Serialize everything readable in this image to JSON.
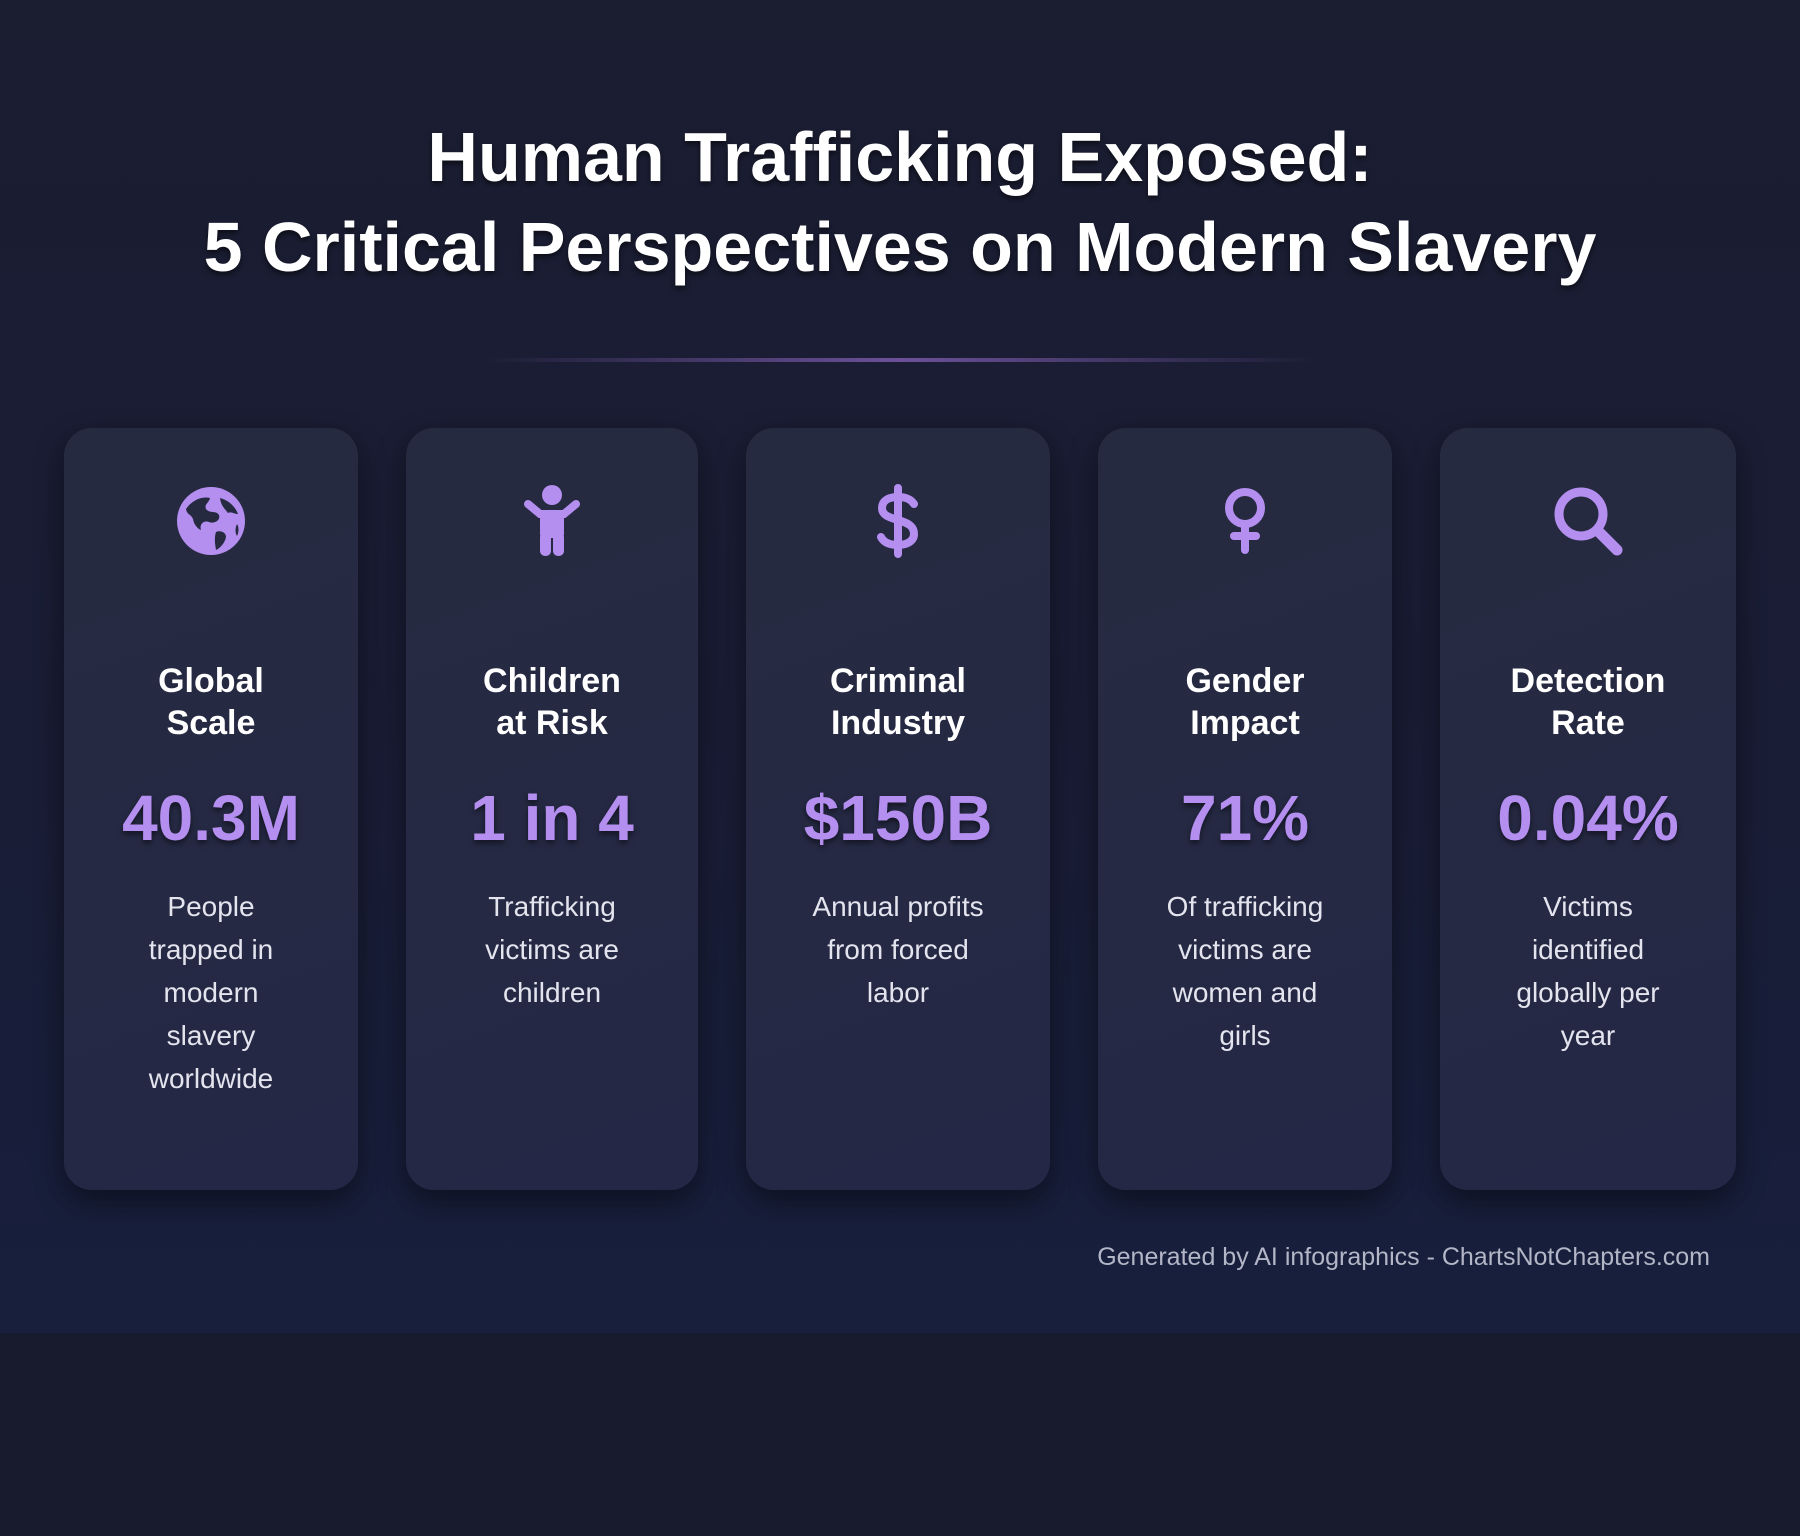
{
  "title": {
    "line1": "Human Trafficking Exposed:",
    "line2": "5 Critical Perspectives on Modern Slavery"
  },
  "accent_color": "#b48ff0",
  "cards": [
    {
      "icon": "globe-icon",
      "label_lines": [
        "Global",
        "Scale"
      ],
      "value": "40.3M",
      "desc_lines": [
        "People",
        "trapped in",
        "modern",
        "slavery",
        "worldwide"
      ]
    },
    {
      "icon": "child-icon",
      "label_lines": [
        "Children",
        "at Risk"
      ],
      "value": "1 in 4",
      "desc_lines": [
        "Trafficking",
        "victims are",
        "children"
      ]
    },
    {
      "icon": "dollar-icon",
      "label_lines": [
        "Criminal",
        "Industry"
      ],
      "value": "$150B",
      "desc_lines": [
        "Annual profits",
        "from forced",
        "labor"
      ]
    },
    {
      "icon": "female-symbol-icon",
      "label_lines": [
        "Gender",
        "Impact"
      ],
      "value": "71%",
      "desc_lines": [
        "Of trafficking",
        "victims are",
        "women and",
        "girls"
      ]
    },
    {
      "icon": "search-icon",
      "label_lines": [
        "Detection",
        "Rate"
      ],
      "value": "0.04%",
      "desc_lines": [
        "Victims",
        "identified",
        "globally per",
        "year"
      ]
    }
  ],
  "footer": "Generated by AI infographics - ChartsNotChapters.com"
}
